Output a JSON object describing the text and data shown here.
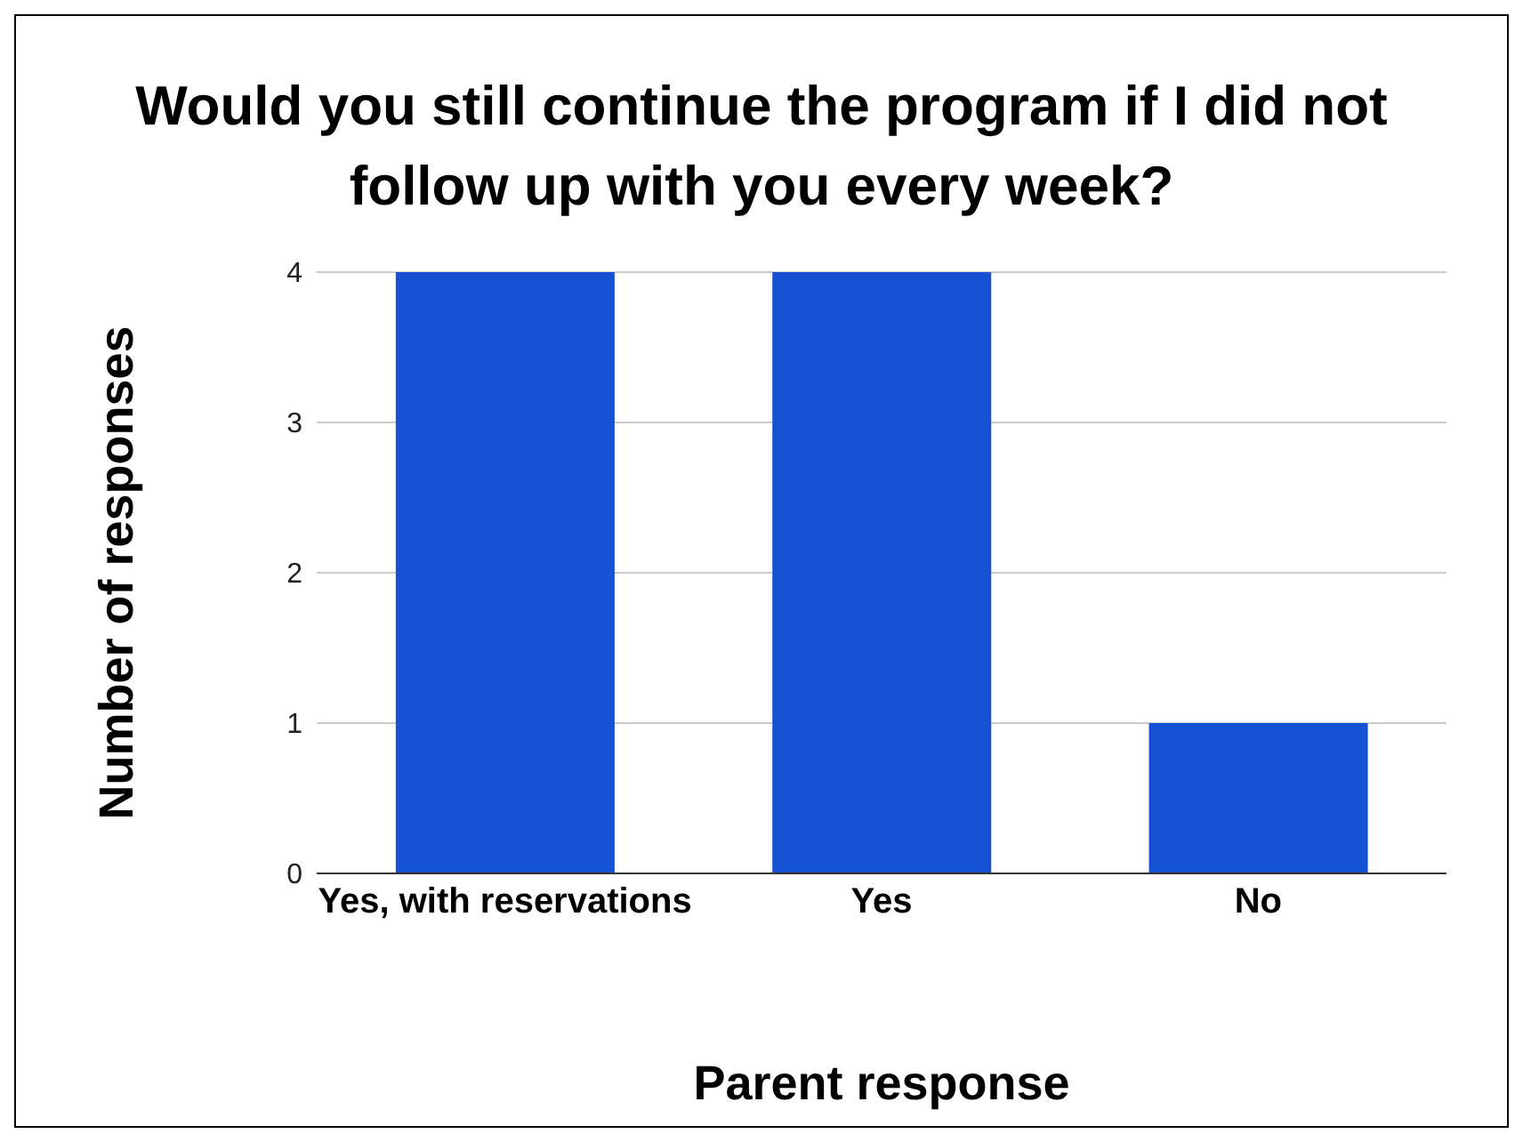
{
  "chart_data": {
    "type": "bar",
    "title": "Would you still continue the program if I did not follow up with you every week?",
    "xlabel": "Parent response",
    "ylabel": "Number of responses",
    "categories": [
      "Yes, with reservations",
      "Yes",
      "No"
    ],
    "values": [
      4,
      4,
      1
    ],
    "color": "#1551d1",
    "ylim": [
      0,
      4
    ],
    "yticks": [
      0,
      1,
      2,
      3,
      4
    ],
    "grid": "y"
  }
}
